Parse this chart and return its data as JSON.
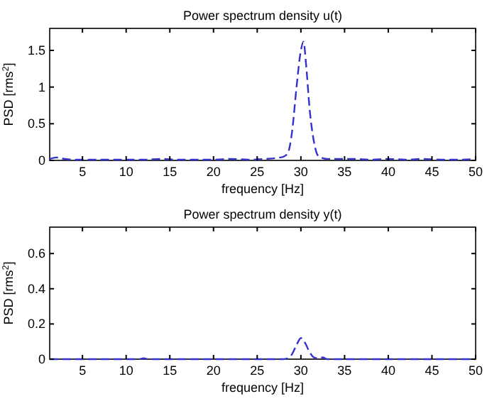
{
  "chart_data": [
    {
      "type": "line",
      "title": "Power spectrum density u(t)",
      "xlabel": "frequency [Hz]",
      "ylabel": "PSD [rms$^{2}$]",
      "line_style": "dashed",
      "xlim": [
        1.25,
        50
      ],
      "xticks": [
        5,
        10,
        15,
        20,
        25,
        30,
        35,
        40,
        45,
        50
      ],
      "ylim": [
        0,
        1.8
      ],
      "yticks": [
        0,
        0.5,
        1,
        1.5
      ],
      "series": [
        {
          "color": "#3333cc",
          "x": [
            1.25,
            2,
            3,
            4,
            6,
            8,
            10,
            12,
            14,
            16,
            18,
            20,
            22,
            24,
            26,
            27,
            28,
            28.5,
            29,
            29.5,
            30,
            30.3,
            30.6,
            31,
            31.5,
            32,
            33,
            34,
            36,
            38,
            40,
            42,
            44,
            46,
            48,
            50
          ],
          "values": [
            0.02,
            0.04,
            0.02,
            0.01,
            0.01,
            0.01,
            0.01,
            0.01,
            0.02,
            0.01,
            0.01,
            0.01,
            0.02,
            0.01,
            0.02,
            0.03,
            0.05,
            0.1,
            0.4,
            1.0,
            1.5,
            1.62,
            1.3,
            0.7,
            0.25,
            0.06,
            0.02,
            0.02,
            0.02,
            0.01,
            0.02,
            0.01,
            0.02,
            0.01,
            0.01,
            0.02
          ]
        }
      ]
    },
    {
      "type": "line",
      "title": "Power spectrum density y(t)",
      "xlabel": "frequency [Hz]",
      "ylabel": "PSD [rms$^{2}$]",
      "line_style": "dashed",
      "xlim": [
        1.25,
        50
      ],
      "xticks": [
        5,
        10,
        15,
        20,
        25,
        30,
        35,
        40,
        45,
        50
      ],
      "ylim": [
        0,
        0.75
      ],
      "yticks": [
        0,
        0.2,
        0.4,
        0.6
      ],
      "series": [
        {
          "color": "#3333cc",
          "x": [
            1.25,
            5,
            10,
            11.5,
            12,
            12.5,
            15,
            20,
            25,
            28,
            28.5,
            29,
            29.5,
            30,
            30.5,
            31,
            31.5,
            32,
            32.5,
            33,
            35,
            40,
            45,
            50
          ],
          "values": [
            0,
            0,
            0,
            0,
            0.005,
            0,
            0,
            0,
            0,
            0,
            0.005,
            0.03,
            0.08,
            0.12,
            0.09,
            0.04,
            0.01,
            0.005,
            0.01,
            0,
            0,
            0,
            0,
            0
          ]
        }
      ]
    }
  ]
}
